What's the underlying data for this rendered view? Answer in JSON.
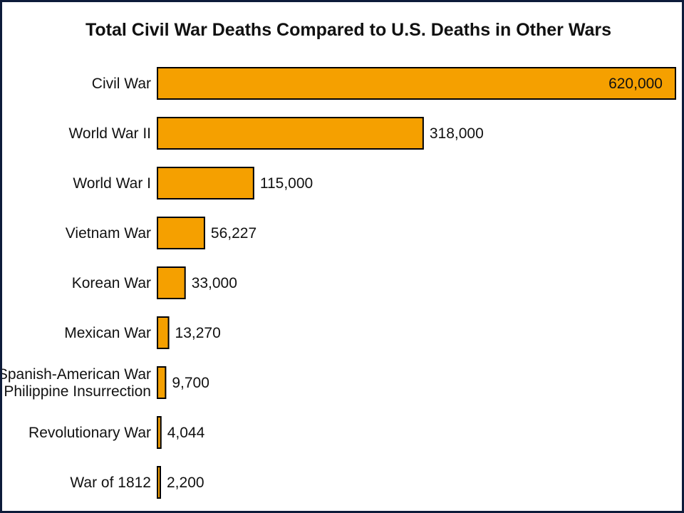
{
  "chart_data": {
    "type": "bar",
    "orientation": "horizontal",
    "title": "Total Civil War Deaths Compared to U.S. Deaths in Other Wars",
    "xlabel": "",
    "ylabel": "",
    "grid": false,
    "bar_color": "#f5a000",
    "bar_edge_color": "#000000",
    "categories": [
      [
        "Civil War"
      ],
      [
        "World War II"
      ],
      [
        "World War I"
      ],
      [
        "Vietnam War"
      ],
      [
        "Korean War"
      ],
      [
        "Mexican War"
      ],
      [
        "Spanish-American War",
        "and Philippine Insurrection"
      ],
      [
        "Revolutionary War"
      ],
      [
        "War of 1812"
      ]
    ],
    "values": [
      620000,
      318000,
      115000,
      56227,
      33000,
      13270,
      9700,
      4044,
      2200
    ],
    "value_labels": [
      "620,000",
      "318,000",
      "115,000",
      "56,227",
      "33,000",
      "13,270",
      "9,700",
      "4,044",
      "2,200"
    ],
    "inside_label_indices": [
      0
    ]
  }
}
